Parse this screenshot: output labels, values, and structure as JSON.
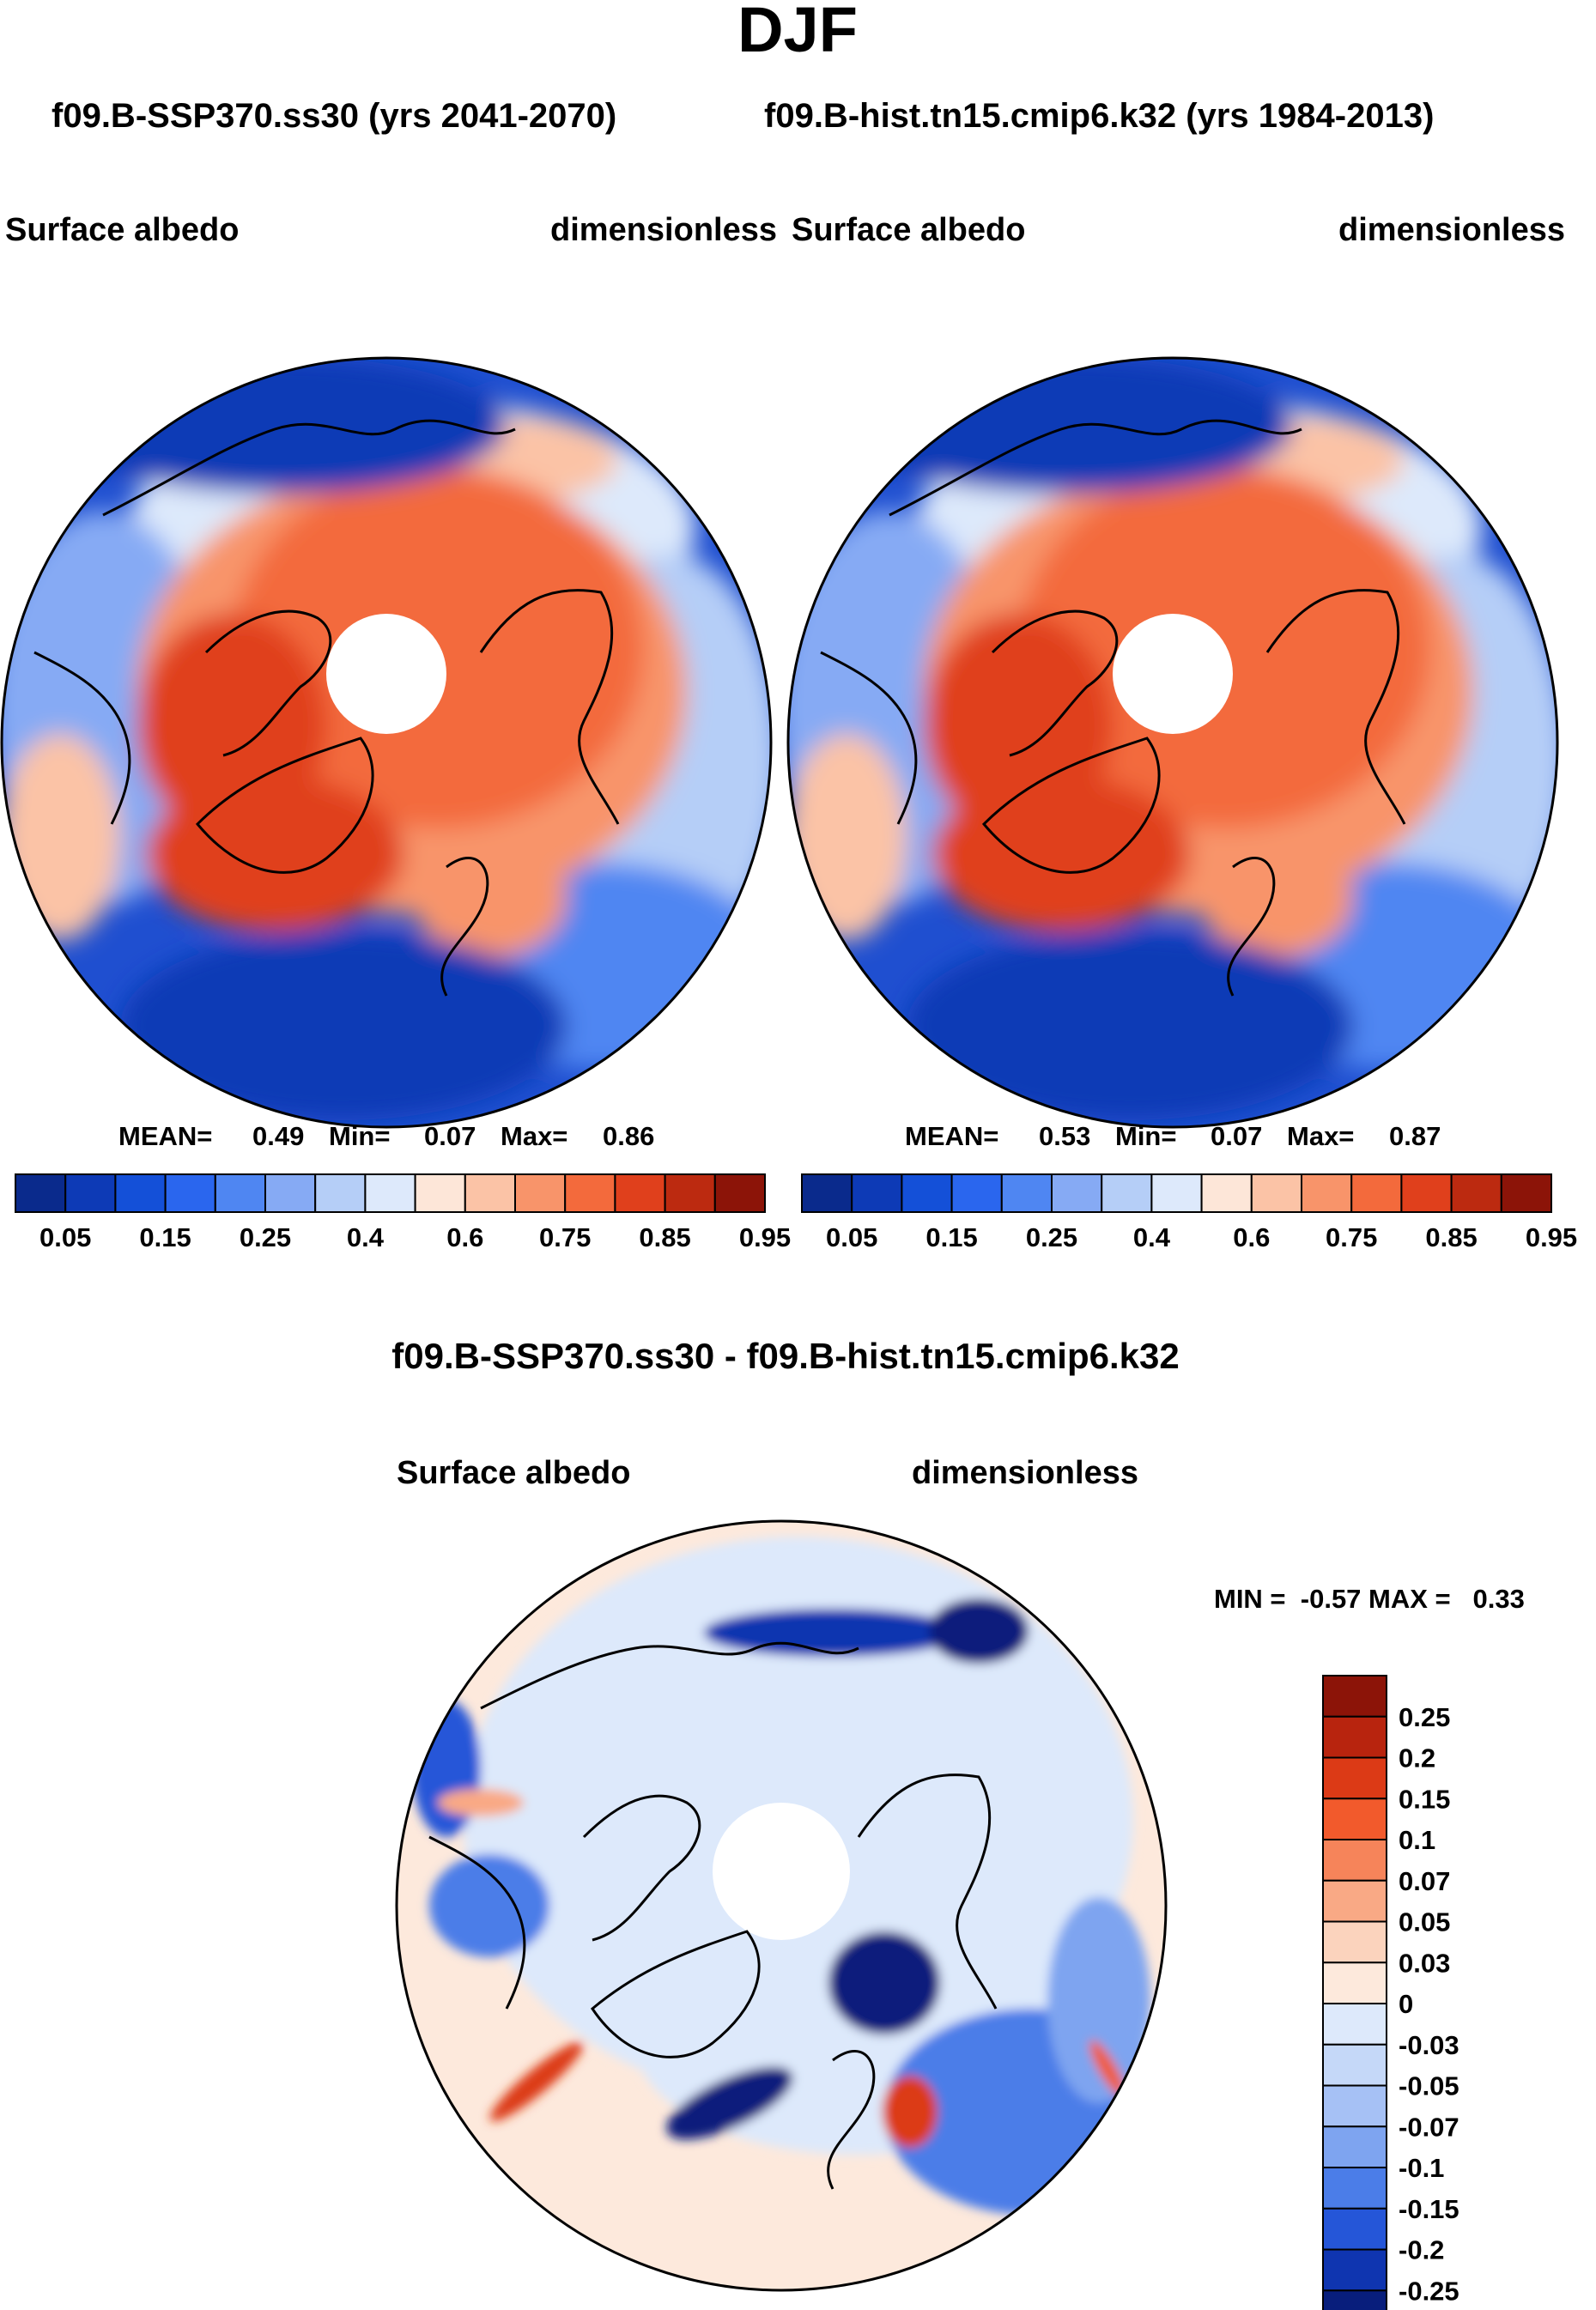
{
  "season": "DJF",
  "header": {
    "title_left": "f09.B-SSP370.ss30 (yrs 2041-2070)",
    "title_right": "f09.B-hist.tn15.cmip6.k32 (yrs 1984-2013)"
  },
  "panels": [
    {
      "variable": "Surface albedo",
      "units": "dimensionless",
      "stats": {
        "mean_label": "MEAN=",
        "mean": "0.49",
        "min_label": "Min=",
        "min": "0.07",
        "max_label": "Max=",
        "max": "0.86"
      },
      "colorbar": {
        "colors": [
          "#0a2a8c",
          "#0d3ab6",
          "#1450d8",
          "#2a66ee",
          "#4f86f2",
          "#86aaf4",
          "#b5cef7",
          "#dde9fb",
          "#fde6d8",
          "#fbc3a6",
          "#f8946a",
          "#f36a3c",
          "#e0401c",
          "#bc2a10",
          "#8c1408"
        ],
        "labels": [
          "0.05",
          "0.15",
          "0.25",
          "0.4",
          "0.6",
          "0.75",
          "0.85",
          "0.95"
        ]
      }
    },
    {
      "variable": "Surface albedo",
      "units": "dimensionless",
      "stats": {
        "mean_label": "MEAN=",
        "mean": "0.53",
        "min_label": "Min=",
        "min": "0.07",
        "max_label": "Max=",
        "max": "0.87"
      },
      "colorbar": {
        "colors": [
          "#0a2a8c",
          "#0d3ab6",
          "#1450d8",
          "#2a66ee",
          "#4f86f2",
          "#86aaf4",
          "#b5cef7",
          "#dde9fb",
          "#fde6d8",
          "#fbc3a6",
          "#f8946a",
          "#f36a3c",
          "#e0401c",
          "#bc2a10",
          "#8c1408"
        ],
        "labels": [
          "0.05",
          "0.15",
          "0.25",
          "0.4",
          "0.6",
          "0.75",
          "0.85",
          "0.95"
        ]
      }
    }
  ],
  "difference": {
    "title": "f09.B-SSP370.ss30 - f09.B-hist.tn15.cmip6.k32",
    "variable": "Surface albedo",
    "units": "dimensionless",
    "minmax": "MIN =  -0.57 MAX =   0.33",
    "colorbar": {
      "colors": [
        "#8c1408",
        "#b8240e",
        "#dc3a16",
        "#f25a2c",
        "#f6845a",
        "#f9a985",
        "#fbd3bd",
        "#fde9dc",
        "#dde9fb",
        "#c5d8f8",
        "#a6c1f5",
        "#7ea4f0",
        "#4b7de8",
        "#2556d8",
        "#0f35b0",
        "#081e7c"
      ],
      "labels": [
        "0.25",
        "0.2",
        "0.15",
        "0.1",
        "0.07",
        "0.05",
        "0.03",
        "0",
        "-0.03",
        "-0.05",
        "-0.07",
        "-0.1",
        "-0.15",
        "-0.2",
        "-0.25"
      ]
    }
  }
}
